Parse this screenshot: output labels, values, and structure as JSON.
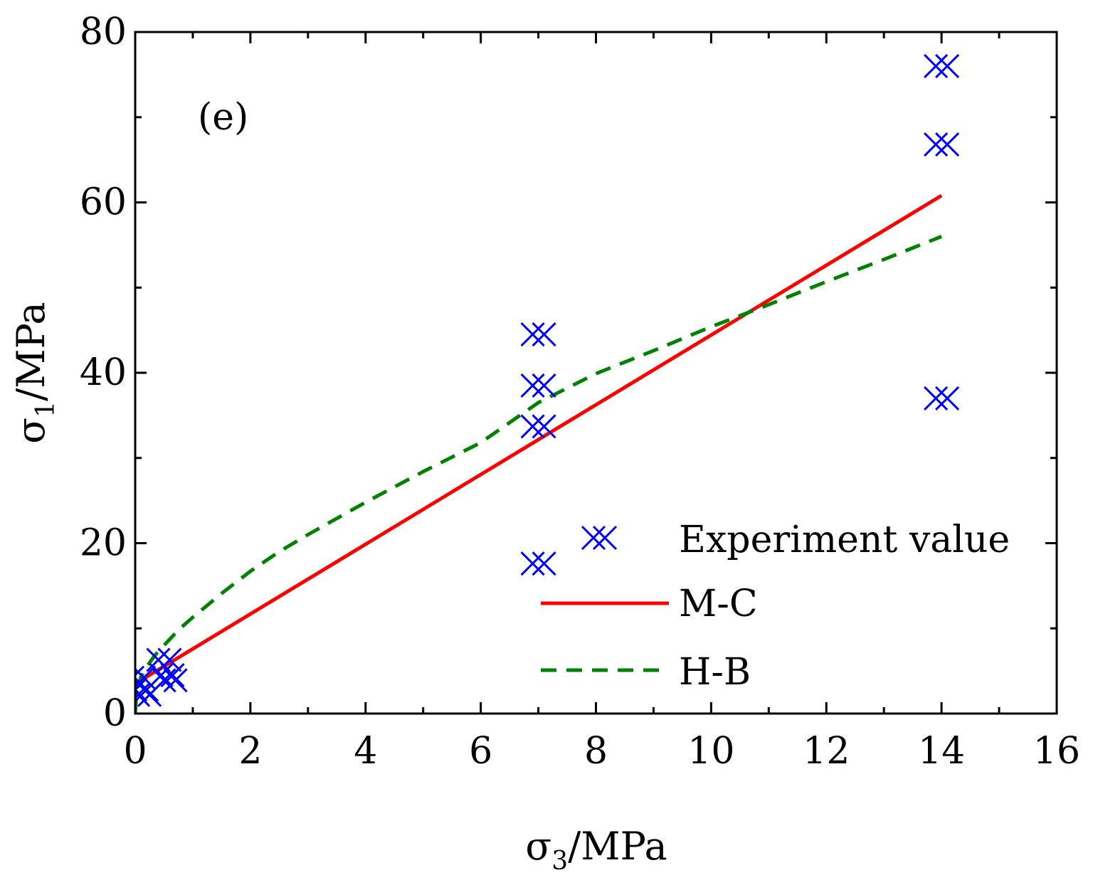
{
  "chart_data": {
    "type": "scatter",
    "title": "",
    "panel_label": "(e)",
    "xlabel": {
      "symbol": "σ",
      "subscript": "3",
      "unit": "/MPa"
    },
    "ylabel": {
      "symbol": "σ",
      "subscript": "1",
      "unit": "/MPa"
    },
    "xlim": [
      0,
      16
    ],
    "ylim": [
      0,
      80
    ],
    "xticks": [
      0,
      2,
      4,
      6,
      8,
      10,
      12,
      14,
      16
    ],
    "yticks": [
      0,
      20,
      40,
      60,
      80
    ],
    "xtick_labels": [
      "0",
      "2",
      "4",
      "6",
      "8",
      "10",
      "12",
      "14",
      "16"
    ],
    "ytick_labels": [
      "0",
      "20",
      "40",
      "60",
      "80"
    ],
    "grid": false,
    "legend_position": "bottom-right",
    "series": [
      {
        "name": "Experiment value",
        "kind": "scatter",
        "marker": "crossed-x",
        "color": "#0000ff",
        "points": [
          [
            0.05,
            4.2
          ],
          [
            0.1,
            2.8
          ],
          [
            0.15,
            2.2
          ],
          [
            0.5,
            6.3
          ],
          [
            0.6,
            3.9
          ],
          [
            0.55,
            4.5
          ],
          [
            7.0,
            44.5
          ],
          [
            7.0,
            38.5
          ],
          [
            7.0,
            33.7
          ],
          [
            7.0,
            17.6
          ],
          [
            14.0,
            76.0
          ],
          [
            14.0,
            66.8
          ],
          [
            14.0,
            37.0
          ]
        ]
      },
      {
        "name": "M-C",
        "kind": "line",
        "style": "solid",
        "color": "#ff0000",
        "points": [
          [
            0,
            3.5
          ],
          [
            14.0,
            60.8
          ]
        ]
      },
      {
        "name": "H-B",
        "kind": "line",
        "style": "dashed",
        "color": "#008000",
        "points": [
          [
            0.0,
            0.0
          ],
          [
            0.02,
            2.0
          ],
          [
            0.05,
            3.2
          ],
          [
            0.1,
            4.3
          ],
          [
            0.2,
            5.5
          ],
          [
            0.35,
            6.9
          ],
          [
            0.5,
            8.0
          ],
          [
            0.75,
            9.8
          ],
          [
            1.0,
            11.3
          ],
          [
            1.5,
            14.1
          ],
          [
            2.0,
            16.7
          ],
          [
            2.5,
            19.0
          ],
          [
            3.0,
            21.0
          ],
          [
            4.0,
            24.8
          ],
          [
            5.0,
            28.4
          ],
          [
            6.0,
            31.8
          ],
          [
            7.0,
            36.5
          ],
          [
            8.0,
            39.9
          ],
          [
            9.0,
            42.6
          ],
          [
            10.0,
            45.4
          ],
          [
            11.0,
            48.0
          ],
          [
            12.0,
            50.7
          ],
          [
            13.0,
            53.3
          ],
          [
            14.0,
            56.0
          ]
        ]
      }
    ]
  }
}
